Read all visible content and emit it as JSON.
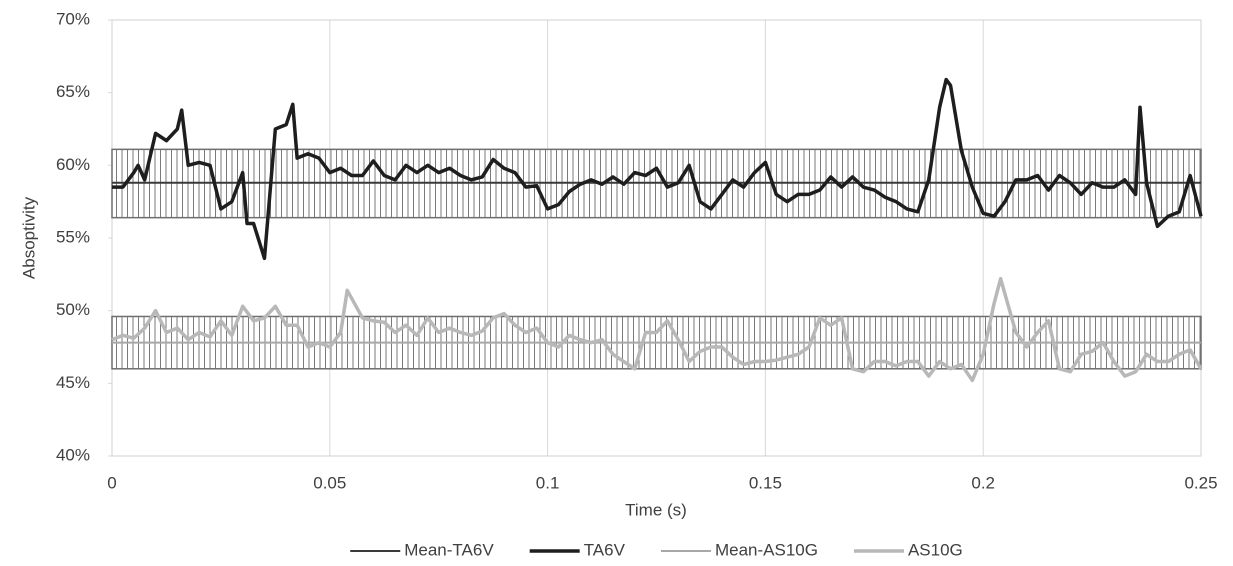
{
  "chart_data": {
    "type": "line",
    "xlabel": "Time (s)",
    "ylabel": "Absoptivity",
    "xlim": [
      0,
      0.25
    ],
    "xticks": [
      0,
      0.05,
      0.1,
      0.15,
      0.2,
      0.25
    ],
    "ylim": [
      40,
      70
    ],
    "yticks": [
      {
        "value": 40,
        "label": "40%"
      },
      {
        "value": 45,
        "label": "45%"
      },
      {
        "value": 50,
        "label": "50%"
      },
      {
        "value": 55,
        "label": "55%"
      },
      {
        "value": 60,
        "label": "60%"
      },
      {
        "value": 65,
        "label": "65%"
      },
      {
        "value": 70,
        "label": "70%"
      }
    ],
    "grid": "x",
    "legend": "bottom",
    "series": [
      {
        "name": "Mean-TA6V",
        "color": "#3a3a3a",
        "width": 2,
        "x": [
          0,
          0.25
        ],
        "values": [
          58.8,
          58.8
        ],
        "band": [
          56.4,
          61.1
        ]
      },
      {
        "name": "TA6V",
        "color": "#1e1e1e",
        "width": 3.5,
        "x": [
          0,
          0.0025,
          0.005,
          0.006,
          0.0075,
          0.01,
          0.0125,
          0.015,
          0.016,
          0.0175,
          0.02,
          0.0225,
          0.025,
          0.0275,
          0.03,
          0.031,
          0.0325,
          0.035,
          0.0375,
          0.04,
          0.0415,
          0.0425,
          0.045,
          0.0475,
          0.05,
          0.0525,
          0.055,
          0.0575,
          0.06,
          0.0625,
          0.065,
          0.0675,
          0.07,
          0.0725,
          0.075,
          0.0775,
          0.08,
          0.0825,
          0.085,
          0.0875,
          0.09,
          0.0925,
          0.095,
          0.0975,
          0.1,
          0.1025,
          0.105,
          0.1075,
          0.11,
          0.1125,
          0.115,
          0.1175,
          0.12,
          0.1225,
          0.125,
          0.1275,
          0.13,
          0.1325,
          0.135,
          0.1375,
          0.14,
          0.1425,
          0.145,
          0.1475,
          0.15,
          0.1525,
          0.155,
          0.1575,
          0.16,
          0.1625,
          0.165,
          0.1675,
          0.17,
          0.1725,
          0.175,
          0.1775,
          0.18,
          0.1825,
          0.185,
          0.1875,
          0.19,
          0.1915,
          0.1925,
          0.195,
          0.1975,
          0.2,
          0.2025,
          0.205,
          0.2075,
          0.21,
          0.2125,
          0.215,
          0.2175,
          0.22,
          0.2225,
          0.225,
          0.2275,
          0.23,
          0.2325,
          0.235,
          0.236,
          0.2375,
          0.24,
          0.2425,
          0.245,
          0.2475,
          0.25
        ],
        "values": [
          58.5,
          58.5,
          59.5,
          60,
          59,
          62.2,
          61.7,
          62.5,
          63.8,
          60,
          60.2,
          60,
          57,
          57.5,
          59.5,
          56,
          56,
          53.6,
          62.5,
          62.8,
          64.2,
          60.5,
          60.8,
          60.5,
          59.5,
          59.8,
          59.3,
          59.3,
          60.3,
          59.3,
          59,
          60,
          59.5,
          60,
          59.5,
          59.8,
          59.3,
          59,
          59.2,
          60.4,
          59.8,
          59.5,
          58.5,
          58.6,
          57,
          57.3,
          58.2,
          58.7,
          59,
          58.7,
          59.2,
          58.7,
          59.5,
          59.3,
          59.8,
          58.5,
          58.8,
          60,
          57.5,
          57,
          58,
          59,
          58.5,
          59.5,
          60.2,
          58,
          57.5,
          58,
          58,
          58.3,
          59.2,
          58.5,
          59.2,
          58.5,
          58.3,
          57.8,
          57.5,
          57,
          56.8,
          59,
          64,
          65.9,
          65.5,
          61,
          58.5,
          56.7,
          56.5,
          57.5,
          59,
          59,
          59.3,
          58.3,
          59.3,
          58.8,
          58,
          58.8,
          58.5,
          58.5,
          59,
          58,
          64,
          58.8,
          55.8,
          56.5,
          56.8,
          59.3,
          56.5
        ]
      },
      {
        "name": "Mean-AS10G",
        "color": "#a8a8a8",
        "width": 2,
        "x": [
          0,
          0.25
        ],
        "values": [
          47.8,
          47.8
        ],
        "band": [
          46,
          49.6
        ]
      },
      {
        "name": "AS10G",
        "color": "#b8b8b8",
        "width": 3.5,
        "x": [
          0,
          0.0025,
          0.005,
          0.0075,
          0.01,
          0.0125,
          0.015,
          0.0175,
          0.02,
          0.0225,
          0.025,
          0.0275,
          0.03,
          0.0325,
          0.035,
          0.0375,
          0.04,
          0.0425,
          0.045,
          0.0475,
          0.05,
          0.0525,
          0.054,
          0.0575,
          0.06,
          0.0625,
          0.065,
          0.0675,
          0.07,
          0.0725,
          0.075,
          0.0775,
          0.08,
          0.0825,
          0.085,
          0.0875,
          0.09,
          0.0925,
          0.095,
          0.0975,
          0.1,
          0.1025,
          0.105,
          0.1075,
          0.11,
          0.1125,
          0.115,
          0.1175,
          0.12,
          0.1225,
          0.125,
          0.1275,
          0.13,
          0.1325,
          0.135,
          0.1375,
          0.14,
          0.1425,
          0.145,
          0.1475,
          0.15,
          0.1525,
          0.155,
          0.1575,
          0.16,
          0.1625,
          0.165,
          0.1675,
          0.17,
          0.1725,
          0.175,
          0.1775,
          0.18,
          0.1825,
          0.185,
          0.1875,
          0.19,
          0.1925,
          0.195,
          0.1975,
          0.2,
          0.2025,
          0.204,
          0.2075,
          0.21,
          0.2125,
          0.215,
          0.2175,
          0.22,
          0.2225,
          0.225,
          0.2275,
          0.23,
          0.2325,
          0.235,
          0.2375,
          0.24,
          0.2425,
          0.245,
          0.2475,
          0.25
        ],
        "values": [
          48,
          48.3,
          48.1,
          48.8,
          50,
          48.5,
          48.8,
          48,
          48.5,
          48.2,
          49.3,
          48.3,
          50.3,
          49.3,
          49.5,
          50.3,
          49,
          49,
          47.5,
          47.8,
          47.5,
          48.5,
          51.4,
          49.5,
          49.3,
          49.2,
          48.5,
          49,
          48.3,
          49.5,
          48.5,
          48.8,
          48.5,
          48.3,
          48.6,
          49.5,
          49.8,
          49,
          48.5,
          48.8,
          47.8,
          47.5,
          48.3,
          48,
          47.8,
          48,
          47,
          46.5,
          46,
          48.5,
          48.5,
          49.3,
          48,
          46.5,
          47.2,
          47.5,
          47.5,
          46.8,
          46.3,
          46.5,
          46.5,
          46.6,
          46.8,
          47,
          47.5,
          49.5,
          49,
          49.5,
          46,
          45.8,
          46.5,
          46.5,
          46.2,
          46.5,
          46.5,
          45.5,
          46.5,
          46,
          46.3,
          45.2,
          47,
          50.5,
          52.2,
          48.5,
          47.5,
          48.5,
          49.3,
          46,
          45.8,
          47,
          47.2,
          47.8,
          46.5,
          45.5,
          45.8,
          47,
          46.5,
          46.5,
          47,
          47.3,
          46
        ]
      }
    ]
  }
}
